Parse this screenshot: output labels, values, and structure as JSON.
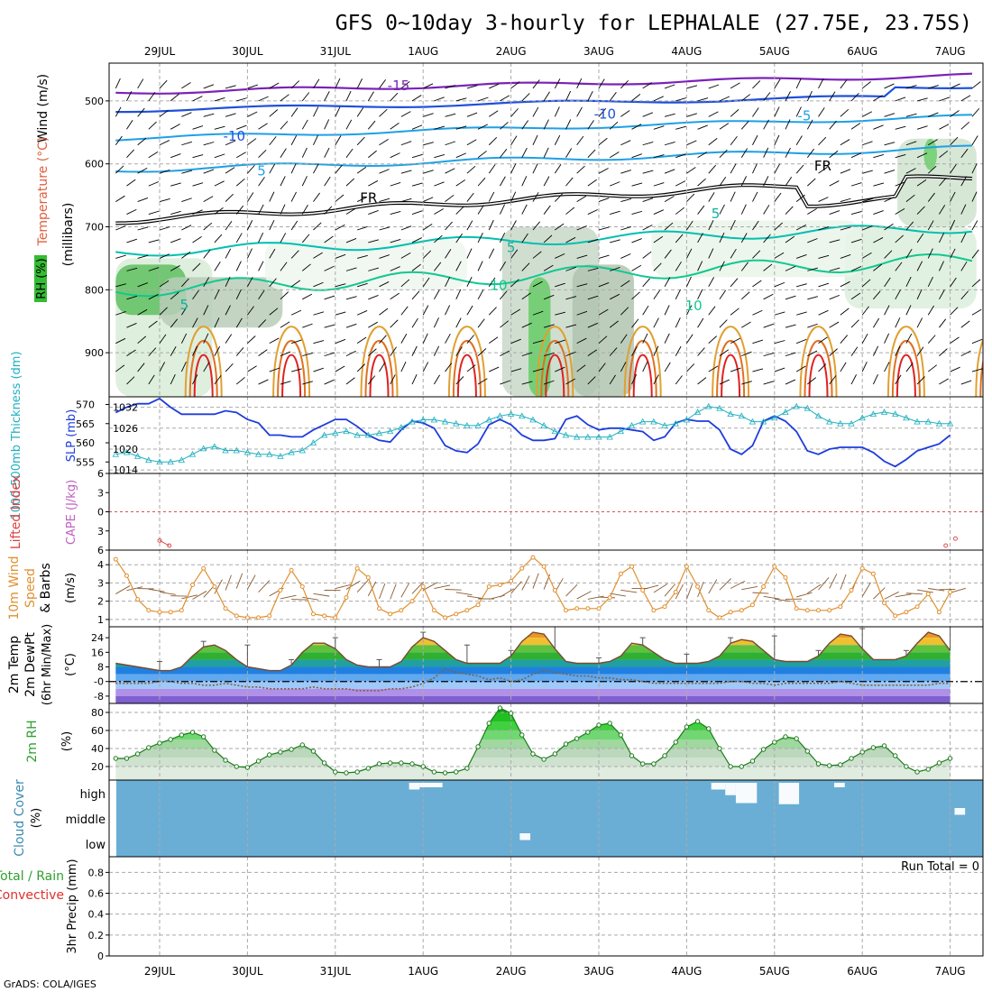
{
  "title": "GFS 0~10day 3-hourly for LEPHALALE (27.75E, 23.75S)",
  "credit": "GrADS: COLA/IGES",
  "colors": {
    "temp_cold": "#7b22b8",
    "temp_mid": "#1e50dc",
    "temp_light": "#1ea0e6",
    "temp_teal": "#00c0b0",
    "temp_green": "#10c890",
    "temp_warm": "#e0a030",
    "temp_orange": "#e07020",
    "temp_red": "#e02020",
    "freezing": "#000000",
    "slp": "#1e3cdc",
    "thickness": "#20b0c0",
    "wind10": "#e09030",
    "dewpoint": "#806040",
    "rh": "#30a030",
    "cloud_bg": "#6aaed6",
    "cloud": "#ffffff",
    "li_zero": "#e05050"
  },
  "chart_data": [
    {
      "id": "upper-air",
      "type": "contour",
      "ylabel_parts": [
        {
          "text": "Wind (m/s)",
          "color": "#000000"
        },
        {
          "text": "Temperature (°C)",
          "color": "#e06040"
        },
        {
          "text": "RH (%)",
          "color": "#30a030"
        }
      ],
      "ylabel_right": "(millibars)",
      "yticks": [
        500,
        600,
        700,
        800,
        900
      ],
      "ylim": [
        440,
        970
      ],
      "contour_labels": [
        {
          "text": "-15",
          "x": 2.72,
          "y": 476,
          "color": "#7b22b8"
        },
        {
          "text": "-10",
          "x": 0.85,
          "y": 556,
          "color": "#1e50dc"
        },
        {
          "text": "-10",
          "x": 5.07,
          "y": 521,
          "color": "#1e50dc"
        },
        {
          "text": "-5",
          "x": 7.34,
          "y": 524,
          "color": "#1ea0e6"
        },
        {
          "text": "5",
          "x": 1.16,
          "y": 611,
          "color": "#1ea0e6"
        },
        {
          "text": "FR",
          "x": 2.38,
          "y": 654,
          "color": "#000000"
        },
        {
          "text": "FR",
          "x": 7.55,
          "y": 603,
          "color": "#000000"
        },
        {
          "text": "5",
          "x": 6.33,
          "y": 679,
          "color": "#10b0a0"
        },
        {
          "text": "5",
          "x": 4.0,
          "y": 733,
          "color": "#10b0a0"
        },
        {
          "text": "10",
          "x": 3.86,
          "y": 793,
          "color": "#10c890"
        },
        {
          "text": "10",
          "x": 6.08,
          "y": 825,
          "color": "#10c890"
        },
        {
          "text": "5",
          "x": 0.28,
          "y": 824,
          "color": "#10b0a0"
        }
      ]
    },
    {
      "id": "slp-thickness",
      "type": "line",
      "ylabel_left": "1000-500mb Thickness (dm)",
      "ylabel_right": "SLP (mb)",
      "yticks_left": [
        555,
        560,
        565,
        570
      ],
      "yticks_right": [
        1014,
        1020,
        1026,
        1032
      ],
      "ylim_left": [
        552,
        572
      ],
      "ylim_right": [
        1013,
        1035
      ],
      "series": [
        {
          "name": "SLP (mb)",
          "axis": "right",
          "values": [
            1030.5,
            1032,
            1033,
            1033,
            1034.5,
            1032,
            1030,
            1030,
            1030,
            1030,
            1031,
            1030.5,
            1028.5,
            1027.5,
            1024,
            1024,
            1023.5,
            1023.5,
            1025.5,
            1027,
            1028.5,
            1028.5,
            1026.5,
            1024,
            1022.5,
            1022,
            1025.5,
            1028,
            1027.5,
            1026,
            1021,
            1019.5,
            1019,
            1021.5,
            1027,
            1028.5,
            1027,
            1024,
            1022.5,
            1022.5,
            1023,
            1028.5,
            1029.5,
            1027,
            1025.5,
            1026,
            1026,
            1025.5,
            1025,
            1022.5,
            1023.5,
            1027.5,
            1028.5,
            1028,
            1028,
            1025.5,
            1020,
            1018.5,
            1021,
            1028,
            1029.5,
            1028,
            1025,
            1019.5,
            1018.5,
            1020,
            1020.5,
            1020.5,
            1020.5,
            1019,
            1016.5,
            1015,
            1017,
            1019.5,
            1020.5,
            1021.5,
            1024
          ]
        },
        {
          "name": "1000-500mb Thickness (dm)",
          "axis": "left",
          "values": [
            557,
            557.5,
            556.5,
            555.5,
            555,
            555,
            555.5,
            557,
            558.5,
            559,
            558,
            558,
            557.5,
            557,
            557,
            556.5,
            557.5,
            558,
            560,
            562,
            562.5,
            563,
            562,
            562,
            562.5,
            563,
            564,
            565.5,
            566,
            566,
            565.5,
            565,
            564.5,
            564.5,
            566,
            567,
            567.5,
            567,
            566,
            564.5,
            563,
            562,
            561.5,
            561.5,
            561.5,
            561.5,
            563,
            564.5,
            565.5,
            565.5,
            564.5,
            565,
            566,
            568,
            569.5,
            569,
            567.5,
            567,
            565.5,
            565.5,
            566.5,
            568,
            569.5,
            569,
            567,
            565.5,
            565,
            565,
            566.5,
            567.5,
            568,
            567.5,
            566.5,
            565.5,
            565.5,
            565,
            565
          ]
        }
      ]
    },
    {
      "id": "cape-li",
      "type": "line",
      "ylabel_left": "Lifted Index",
      "ylabel_right": "CAPE (J/kg)",
      "yticks": [
        -6,
        -3,
        0,
        3,
        6
      ],
      "yticks_text": [
        "6",
        "3",
        "0",
        "3",
        "6"
      ],
      "ylim": [
        -6,
        6
      ],
      "series": [
        {
          "name": "Lifted Index",
          "values": [
            {
              "x": 0.0,
              "y": 4.5
            },
            {
              "x": 0.11,
              "y": 5.3
            },
            {
              "x": 8.95,
              "y": 5.3
            },
            {
              "x": 9.06,
              "y": 4.2
            }
          ]
        }
      ]
    },
    {
      "id": "wind10m",
      "type": "line",
      "ylabel_left": "10m Wind",
      "ylabel_mid": "Speed",
      "ylabel_right": "& Barbs",
      "yunit": "(m/s)",
      "yticks": [
        1,
        2,
        3,
        4
      ],
      "ylim": [
        0.6,
        4.8
      ],
      "series": [
        {
          "name": "10m Wind Speed",
          "values": [
            4.3,
            3.4,
            2.1,
            1.5,
            1.4,
            1.4,
            1.5,
            2.9,
            3.8,
            2.8,
            1.6,
            1.2,
            1.1,
            1.1,
            1.2,
            2.6,
            3.7,
            2.8,
            1.3,
            1.2,
            1.1,
            2.2,
            3.8,
            3.3,
            1.6,
            1.3,
            1.5,
            2.0,
            2.8,
            1.5,
            1.1,
            1.3,
            1.5,
            1.8,
            2.8,
            2.9,
            3.1,
            3.8,
            4.4,
            3.9,
            2.6,
            1.5,
            1.6,
            1.6,
            1.6,
            2.2,
            3.5,
            3.9,
            2.6,
            1.5,
            1.7,
            2.5,
            3.9,
            2.8,
            1.5,
            1.1,
            1.4,
            1.5,
            1.8,
            2.8,
            3.9,
            3.3,
            1.6,
            1.5,
            1.5,
            1.5,
            1.7,
            2.6,
            3.8,
            3.5,
            1.9,
            1.2,
            1.4,
            1.7,
            2.4,
            1.4,
            2.5
          ]
        }
      ]
    },
    {
      "id": "temp2m",
      "type": "area",
      "ylabel_left": "2m Temp",
      "ylabel_mid": "2m DewPt",
      "ylabel_right": "(6hr Min/Max)",
      "yunit": "(°C)",
      "yticks": [
        -8,
        0,
        8,
        16,
        24
      ],
      "yticks_text": [
        "-8",
        "-0",
        "8",
        "16",
        "24"
      ],
      "ylim": [
        -12,
        30
      ],
      "series": [
        {
          "name": "2m Temp",
          "values": [
            10,
            9,
            8,
            7,
            6,
            6,
            8,
            14,
            19,
            20,
            17,
            12,
            8,
            7,
            6,
            6,
            9,
            16,
            21,
            21,
            18,
            12,
            9,
            8,
            8,
            8,
            11,
            19,
            24,
            22,
            17,
            12,
            10,
            10,
            10,
            10,
            14,
            22,
            27,
            26,
            18,
            11,
            10,
            10,
            10,
            11,
            14,
            21,
            20,
            16,
            12,
            10,
            10,
            10,
            11,
            14,
            21,
            23,
            22,
            17,
            12,
            11,
            11,
            11,
            14,
            21,
            26,
            25,
            18,
            12,
            12,
            12,
            14,
            21,
            27,
            25,
            17
          ]
        },
        {
          "name": "2m DewPt",
          "values": [
            -1,
            -1,
            -1,
            -1,
            0,
            0,
            -1,
            -1,
            -2,
            -2,
            -1,
            -2,
            -3,
            -3,
            -4,
            -4,
            -4,
            -4,
            -3,
            -4,
            -4,
            -4,
            -5,
            -5,
            -5,
            -4,
            -4,
            -3,
            -1,
            2,
            7,
            5,
            4,
            3,
            1,
            2,
            0,
            1,
            4,
            6,
            5,
            4,
            3,
            3,
            2,
            2,
            1,
            1,
            0,
            -1,
            -1,
            -1,
            -1,
            -1,
            -1,
            -1,
            0,
            0,
            -1,
            -1,
            -2,
            -1,
            -1,
            -1,
            -1,
            -1,
            0,
            -1,
            -2,
            -2,
            -2,
            -2,
            -2,
            -2,
            -2,
            -1,
            -1
          ]
        }
      ],
      "bands": [
        {
          "lo": 24,
          "hi": 30,
          "color": "#e89828"
        },
        {
          "lo": 20,
          "hi": 24,
          "color": "#f0c030"
        },
        {
          "lo": 16,
          "hi": 20,
          "color": "#60c040"
        },
        {
          "lo": 12,
          "hi": 16,
          "color": "#30b030"
        },
        {
          "lo": 8,
          "hi": 12,
          "color": "#20a0a0"
        },
        {
          "lo": 4,
          "hi": 8,
          "color": "#2080e0"
        },
        {
          "lo": 0,
          "hi": 4,
          "color": "#60a8f0"
        },
        {
          "lo": -4,
          "hi": 0,
          "color": "#a0c8f8"
        },
        {
          "lo": -8,
          "hi": -4,
          "color": "#b090e8"
        },
        {
          "lo": -12,
          "hi": -8,
          "color": "#8060d0"
        }
      ]
    },
    {
      "id": "rh2m",
      "type": "area",
      "ylabel_left": "2m RH",
      "yunit": "(%)",
      "yticks": [
        20,
        40,
        60,
        80
      ],
      "ylim": [
        5,
        90
      ],
      "series": [
        {
          "name": "2m RH",
          "values": [
            29,
            29,
            34,
            41,
            46,
            50,
            55,
            58,
            53,
            38,
            27,
            20,
            19,
            26,
            33,
            36,
            39,
            44,
            37,
            24,
            14,
            13,
            14,
            18,
            23,
            24,
            24,
            23,
            20,
            14,
            13,
            14,
            18,
            42,
            68,
            85,
            79,
            55,
            34,
            28,
            34,
            45,
            51,
            58,
            66,
            68,
            55,
            32,
            23,
            23,
            32,
            47,
            64,
            70,
            62,
            40,
            20,
            20,
            26,
            39,
            47,
            53,
            51,
            37,
            23,
            21,
            22,
            29,
            36,
            41,
            43,
            32,
            20,
            14,
            17,
            24,
            29
          ]
        }
      ]
    },
    {
      "id": "cloud",
      "type": "heatmap",
      "ylabel_left": "Cloud Cover",
      "yunit": "(%)",
      "levels": [
        "high",
        "middle",
        "low"
      ],
      "cells": [
        {
          "level": "high",
          "x0": 2.84,
          "x1": 2.96,
          "pct": 30
        },
        {
          "level": "high",
          "x0": 2.96,
          "x1": 3.22,
          "pct": 20
        },
        {
          "level": "high",
          "x0": 6.28,
          "x1": 6.44,
          "pct": 30
        },
        {
          "level": "high",
          "x0": 6.44,
          "x1": 6.56,
          "pct": 55
        },
        {
          "level": "high",
          "x0": 6.56,
          "x1": 6.8,
          "pct": 90
        },
        {
          "level": "high",
          "x0": 7.05,
          "x1": 7.28,
          "pct": 95
        },
        {
          "level": "high",
          "x0": 7.68,
          "x1": 7.8,
          "pct": 20
        },
        {
          "level": "middle",
          "x0": 9.05,
          "x1": 9.17,
          "pct": 30
        },
        {
          "level": "low",
          "x0": 4.1,
          "x1": 4.22,
          "pct": 30
        }
      ]
    },
    {
      "id": "precip",
      "type": "bar",
      "ylabel_left": "Total / Rain",
      "ylabel_left2": "Convective",
      "ylabel_right": "3hr Precip (mm)",
      "yticks": [
        0,
        0.2,
        0.4,
        0.6,
        0.8
      ],
      "ylim": [
        0,
        0.95
      ],
      "run_total": "Run Total = 0",
      "values": []
    }
  ],
  "x_axis": {
    "day_labels": [
      "29JUL",
      "30JUL",
      "31JUL",
      "1AUG",
      "2AUG",
      "3AUG",
      "4AUG",
      "5AUG",
      "6AUG",
      "7AUG"
    ]
  }
}
